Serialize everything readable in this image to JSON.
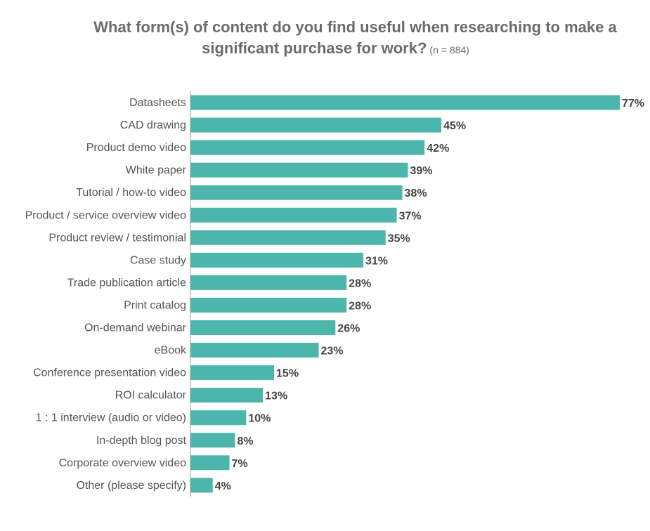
{
  "chart_data": {
    "type": "bar",
    "orientation": "horizontal",
    "title_line1": "What form(s) of content do you find useful when researching to make a",
    "title_line2": "significant purchase for work?",
    "title_note": "(n = 884)",
    "colors": {
      "bar": "#4db6ac",
      "label": "#555555",
      "value": "#444444"
    },
    "categories": [
      "Datasheets",
      "CAD drawing",
      "Product demo video",
      "White paper",
      "Tutorial / how-to video",
      "Product / service overview video",
      "Product review / testimonial",
      "Case study",
      "Trade publication article",
      "Print catalog",
      "On-demand webinar",
      "eBook",
      "Conference presentation video",
      "ROI calculator",
      "1 : 1 interview (audio or video)",
      "In-depth blog post",
      "Corporate overview video",
      "Other (please specify)"
    ],
    "values": [
      77,
      45,
      42,
      39,
      38,
      37,
      35,
      31,
      28,
      28,
      26,
      23,
      15,
      13,
      10,
      8,
      7,
      4
    ],
    "value_labels": [
      "77%",
      "45%",
      "42%",
      "39%",
      "38%",
      "37%",
      "35%",
      "31%",
      "28%",
      "28%",
      "26%",
      "23%",
      "15%",
      "13%",
      "10%",
      "8%",
      "7%",
      "4%"
    ],
    "xlim": [
      0,
      77
    ],
    "grid": false,
    "legend": "none"
  }
}
